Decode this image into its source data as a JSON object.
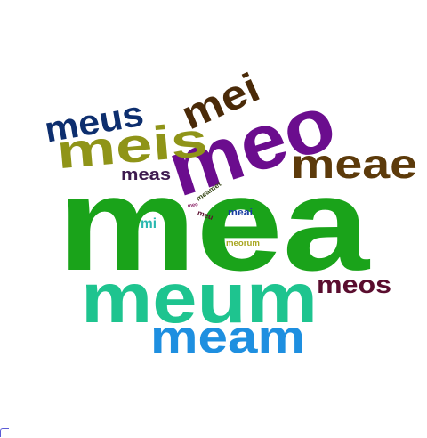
{
  "words": [
    {
      "id": "mea",
      "text": "mea",
      "color": "#1aa31a"
    },
    {
      "id": "meum",
      "text": "meum",
      "color": "#1ec48f"
    },
    {
      "id": "meo",
      "text": "meo",
      "color": "#6b0d8e"
    },
    {
      "id": "meis",
      "text": "meis",
      "color": "#8f9418"
    },
    {
      "id": "meam",
      "text": "meam",
      "color": "#1e8fe0"
    },
    {
      "id": "meae",
      "text": "meae",
      "color": "#5c3a0a"
    },
    {
      "id": "mei",
      "text": "mei",
      "color": "#4a2a08"
    },
    {
      "id": "meus",
      "text": "meus",
      "color": "#0d2e6e"
    },
    {
      "id": "meos",
      "text": "meos",
      "color": "#5a0d2e"
    },
    {
      "id": "meas",
      "text": "meas",
      "color": "#3d1a4f"
    },
    {
      "id": "mi",
      "text": "mi",
      "color": "#29b8b0"
    },
    {
      "id": "meai",
      "text": "meai",
      "color": "#1a3ea3"
    },
    {
      "id": "meorum",
      "text": "meorum",
      "color": "#a8a620"
    },
    {
      "id": "meamet",
      "text": "meamet",
      "color": "#3a4a1a"
    },
    {
      "id": "meu",
      "text": "meu",
      "color": "#5a0d2e"
    },
    {
      "id": "tiny",
      "text": "meo",
      "color": "#8e2a6b"
    }
  ]
}
